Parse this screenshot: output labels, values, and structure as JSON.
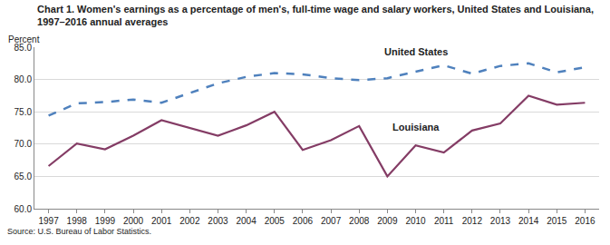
{
  "chart_data": {
    "type": "line",
    "title": "Chart 1. Women's earnings as a percentage of men's, full-time wage and salary workers, United States and Louisiana,\n1997–2016 annual averages",
    "y_label": "Percent",
    "source": "Source: U.S. Bureau of Labor Statistics.",
    "categories": [
      "1997",
      "1998",
      "1999",
      "2000",
      "2001",
      "2002",
      "2003",
      "2004",
      "2005",
      "2006",
      "2007",
      "2008",
      "2009",
      "2010",
      "2011",
      "2012",
      "2013",
      "2014",
      "2015",
      "2016"
    ],
    "series": [
      {
        "name": "United States",
        "color": "#4f81bd",
        "line_style": "dashed",
        "values": [
          74.4,
          76.3,
          76.5,
          76.9,
          76.4,
          77.9,
          79.4,
          80.4,
          81.0,
          80.8,
          80.2,
          79.9,
          80.2,
          81.2,
          82.2,
          80.9,
          82.1,
          82.5,
          81.1,
          81.9
        ]
      },
      {
        "name": "Louisiana",
        "color": "#843c65",
        "line_style": "solid",
        "values": [
          66.6,
          70.1,
          69.2,
          71.3,
          73.7,
          72.5,
          71.3,
          72.9,
          75.0,
          69.1,
          70.6,
          72.8,
          65.0,
          69.8,
          68.7,
          72.1,
          73.2,
          77.5,
          76.1,
          76.4
        ]
      }
    ],
    "ylim": [
      60,
      85
    ],
    "yticks": [
      {
        "value": 60,
        "label": "60.0"
      },
      {
        "value": 65,
        "label": "65.0"
      },
      {
        "value": 70,
        "label": "70.0"
      },
      {
        "value": 75,
        "label": "75.0"
      },
      {
        "value": 80,
        "label": "80.0"
      },
      {
        "value": 85,
        "label": "85.0"
      }
    ],
    "grid": true
  }
}
